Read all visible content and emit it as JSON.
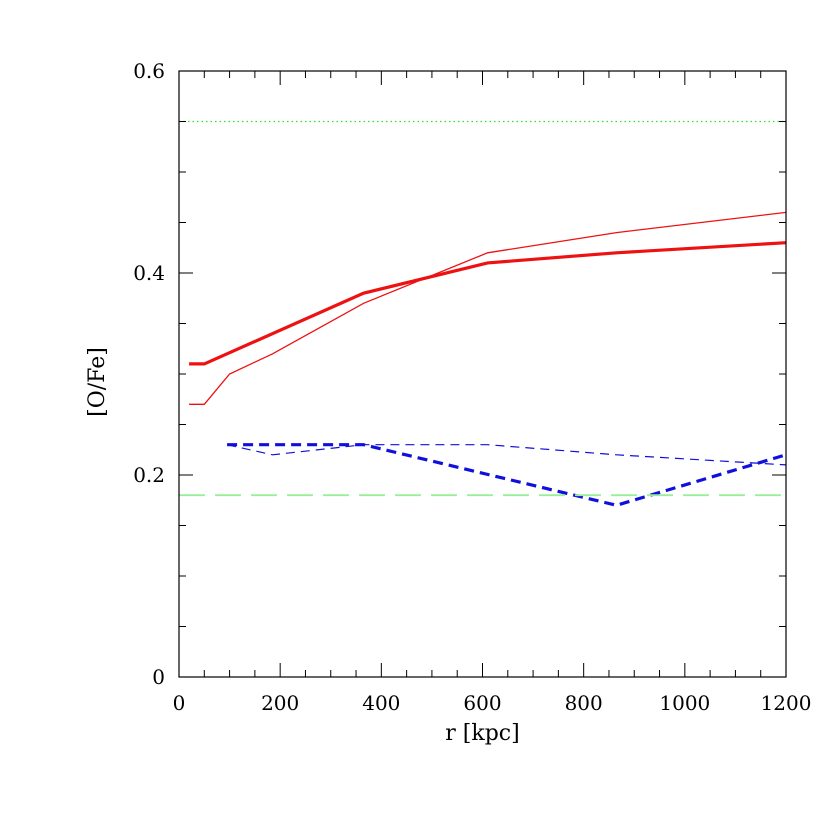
{
  "chart_data": {
    "type": "line",
    "xlabel": "r [kpc]",
    "ylabel": "[O/Fe]",
    "xlim": [
      0,
      1200
    ],
    "ylim": [
      0,
      0.6
    ],
    "xticks": [
      0,
      200,
      400,
      600,
      800,
      1000,
      1200
    ],
    "xtick_labels": [
      "0",
      "200",
      "400",
      "600",
      "800",
      "1000",
      "1200"
    ],
    "yticks": [
      0,
      0.2,
      0.4,
      0.6
    ],
    "ytick_labels": [
      "0",
      "0.2",
      "0.4",
      "0.6"
    ],
    "grid": false,
    "series": [
      {
        "style": "thick-solid",
        "color": "#ee1111",
        "x": [
          20,
          50,
          365,
          610,
          865,
          1200
        ],
        "y": [
          0.31,
          0.31,
          0.38,
          0.41,
          0.42,
          0.43
        ]
      },
      {
        "style": "thin-solid",
        "color": "#ee1111",
        "x": [
          20,
          50,
          100,
          185,
          365,
          610,
          865,
          1200
        ],
        "y": [
          0.27,
          0.27,
          0.3,
          0.32,
          0.37,
          0.42,
          0.44,
          0.46
        ]
      },
      {
        "style": "thick-dashed",
        "color": "#1010dd",
        "x": [
          95,
          365,
          865,
          1200
        ],
        "y": [
          0.23,
          0.23,
          0.17,
          0.22
        ]
      },
      {
        "style": "thin-dashed",
        "color": "#1010dd",
        "x": [
          95,
          185,
          365,
          610,
          865,
          1200
        ],
        "y": [
          0.23,
          0.22,
          0.23,
          0.23,
          0.22,
          0.21
        ]
      },
      {
        "style": "dotted",
        "color": "#33dd33",
        "x": [
          0,
          1200
        ],
        "y": [
          0.55,
          0.55
        ]
      },
      {
        "style": "long-dashed",
        "color": "#99ee99",
        "x": [
          0,
          1200
        ],
        "y": [
          0.18,
          0.18
        ]
      }
    ]
  }
}
